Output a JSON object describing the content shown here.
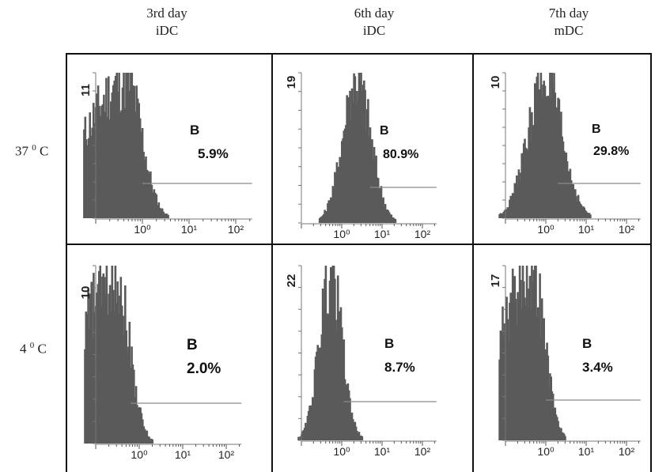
{
  "columns": [
    {
      "line1": "3rd day",
      "line2": "iDC"
    },
    {
      "line1": "6th day",
      "line2": "iDC"
    },
    {
      "line1": "7th day",
      "line2": "mDC"
    }
  ],
  "rows": [
    {
      "temp": "37",
      "sup": "0",
      "unit": " C"
    },
    {
      "temp": "4",
      "sup": "0",
      "unit": " C"
    }
  ],
  "chart_data": [
    {
      "type": "histogram",
      "row": "37 0 C",
      "column": "3rd day iDC",
      "ymax": "11",
      "gate": "B",
      "percent": "5.9%",
      "x_ticks": [
        "10⁰",
        "10¹",
        "10²"
      ],
      "peak_log": -0.35,
      "spread": 0.32,
      "shape": "left-skewed"
    },
    {
      "type": "histogram",
      "row": "37 0 C",
      "column": "6th day iDC",
      "ymax": "19",
      "gate": "B",
      "percent": "80.9%",
      "x_ticks": [
        "10⁰",
        "10¹",
        "10²"
      ],
      "peak_log": 0.35,
      "spread": 0.35,
      "shape": "normal"
    },
    {
      "type": "histogram",
      "row": "37 0 C",
      "column": "7th day mDC",
      "ymax": "10",
      "gate": "B",
      "percent": "29.8%",
      "x_ticks": [
        "10⁰",
        "10¹",
        "10²"
      ],
      "peak_log": -0.05,
      "spread": 0.42,
      "shape": "normal"
    },
    {
      "type": "histogram",
      "row": "4 0 C",
      "column": "3rd day iDC",
      "ymax": "10",
      "gate": "B",
      "percent": "2.0%",
      "x_ticks": [
        "10⁰",
        "10¹",
        "10²"
      ],
      "peak_log": -0.55,
      "spread": 0.3,
      "shape": "left-skewed"
    },
    {
      "type": "histogram",
      "row": "4 0 C",
      "column": "6th day iDC",
      "ymax": "22",
      "gate": "B",
      "percent": "8.7%",
      "x_ticks": [
        "10⁰",
        "10¹",
        "10²"
      ],
      "peak_log": -0.3,
      "spread": 0.28,
      "shape": "normal"
    },
    {
      "type": "histogram",
      "row": "4 0 C",
      "column": "7th day mDC",
      "ymax": "17",
      "gate": "B",
      "percent": "3.4%",
      "x_ticks": [
        "10⁰",
        "10¹",
        "10²"
      ],
      "peak_log": -0.35,
      "spread": 0.3,
      "shape": "left-skewed"
    }
  ]
}
